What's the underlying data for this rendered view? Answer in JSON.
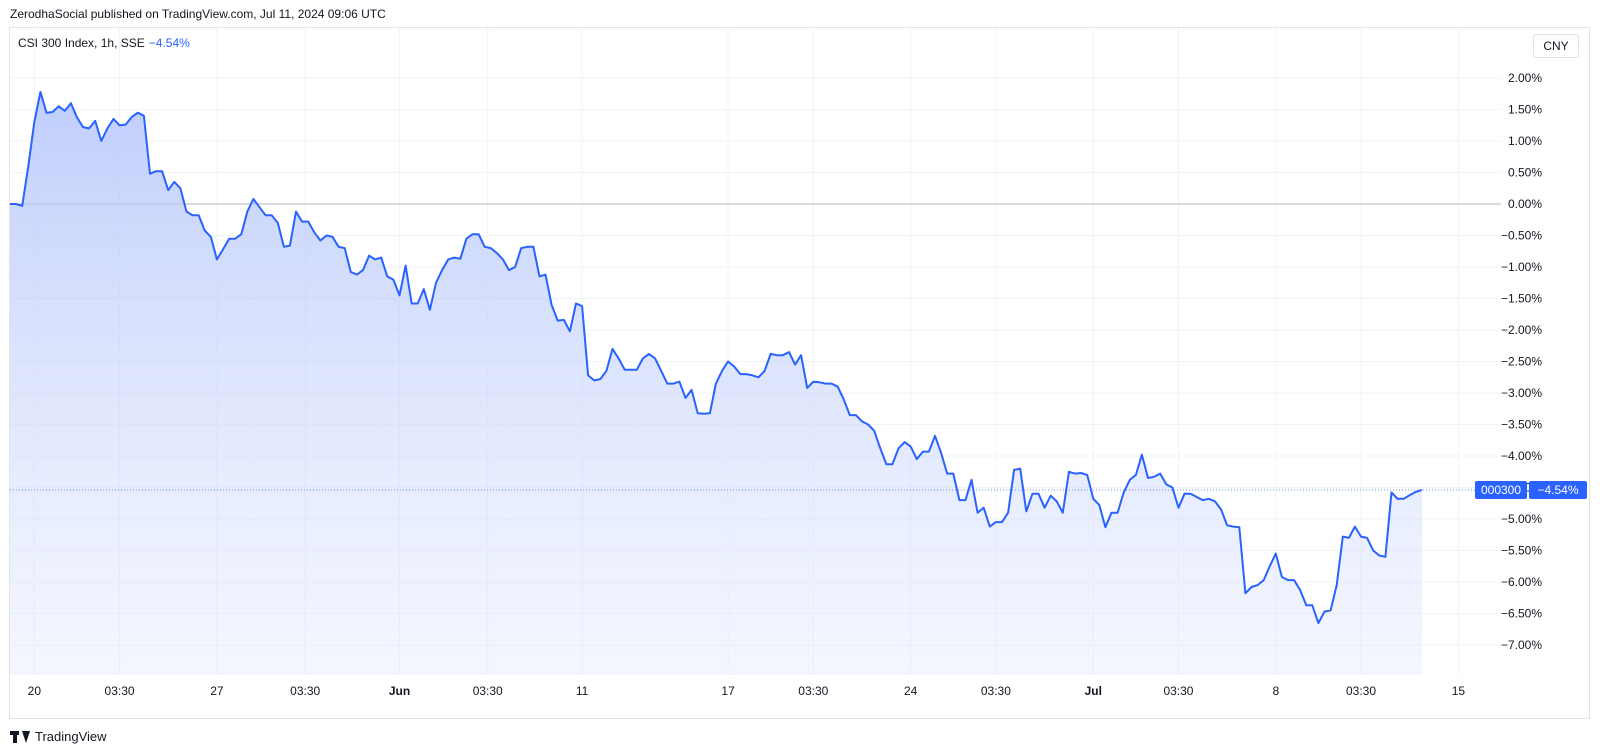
{
  "publisher_line": "ZerodhaSocial published on TradingView.com, Jul 11, 2024 09:06 UTC",
  "legend": {
    "title": "CSI 300 Index, 1h, SSE",
    "change": "−4.54%"
  },
  "currency_button": "CNY",
  "footer": {
    "brand": "TradingView",
    "logo_icon": "tradingview-logo-icon"
  },
  "colors": {
    "line": "#2962ff",
    "fill_top": "#b7c6fb",
    "zero_line": "#b2b5be",
    "grid": "#f0f3fa",
    "badge": "#2962ff"
  },
  "price_badges": {
    "symbol": "000300",
    "value": "−4.54%"
  },
  "chart_data": {
    "type": "area",
    "title": "CSI 300 Index, 1h, SSE",
    "y_unit": "%",
    "ylim": [
      -7.4,
      2.3
    ],
    "y_ticks": [
      "2.00%",
      "1.50%",
      "1.00%",
      "0.50%",
      "0.00%",
      "−0.50%",
      "−1.00%",
      "−1.50%",
      "−2.00%",
      "−2.50%",
      "−3.00%",
      "−3.50%",
      "−4.00%",
      "−4.50%",
      "−5.00%",
      "−5.50%",
      "−6.00%",
      "−6.50%",
      "−7.00%"
    ],
    "y_tick_values": [
      2.0,
      1.5,
      1.0,
      0.5,
      0.0,
      -0.5,
      -1.0,
      -1.5,
      -2.0,
      -2.5,
      -3.0,
      -3.5,
      -4.0,
      -4.5,
      -5.0,
      -5.5,
      -6.0,
      -6.5,
      -7.0
    ],
    "x_ticks": [
      {
        "label": "20",
        "bold": false,
        "x": 4
      },
      {
        "label": "03:30",
        "bold": false,
        "x": 18
      },
      {
        "label": "27",
        "bold": false,
        "x": 34
      },
      {
        "label": "03:30",
        "bold": false,
        "x": 48.5
      },
      {
        "label": "Jun",
        "bold": true,
        "x": 64
      },
      {
        "label": "03:30",
        "bold": false,
        "x": 78.5
      },
      {
        "label": "11",
        "bold": false,
        "x": 94
      },
      {
        "label": "17",
        "bold": false,
        "x": 118
      },
      {
        "label": "03:30",
        "bold": false,
        "x": 132
      },
      {
        "label": "24",
        "bold": false,
        "x": 148
      },
      {
        "label": "03:30",
        "bold": false,
        "x": 162
      },
      {
        "label": "Jul",
        "bold": true,
        "x": 178
      },
      {
        "label": "03:30",
        "bold": false,
        "x": 192
      },
      {
        "label": "8",
        "bold": false,
        "x": 208
      },
      {
        "label": "03:30",
        "bold": false,
        "x": 222
      },
      {
        "label": "15",
        "bold": false,
        "x": 238
      }
    ],
    "x_range": [
      0,
      245
    ],
    "last_value": -4.54,
    "series": [
      {
        "values": [
          [
            0,
            0.0
          ],
          [
            1,
            0.0
          ],
          [
            2,
            -0.03
          ],
          [
            3,
            0.6
          ],
          [
            4,
            1.3
          ],
          [
            5,
            1.78
          ],
          [
            6,
            1.45
          ],
          [
            7,
            1.46
          ],
          [
            8,
            1.55
          ],
          [
            9,
            1.48
          ],
          [
            10,
            1.6
          ],
          [
            11,
            1.38
          ],
          [
            12,
            1.22
          ],
          [
            13,
            1.2
          ],
          [
            14,
            1.32
          ],
          [
            15,
            1.0
          ],
          [
            16,
            1.2
          ],
          [
            17,
            1.35
          ],
          [
            18,
            1.25
          ],
          [
            19,
            1.26
          ],
          [
            20,
            1.38
          ],
          [
            21,
            1.45
          ],
          [
            22,
            1.4
          ],
          [
            23,
            0.48
          ],
          [
            24,
            0.52
          ],
          [
            25,
            0.52
          ],
          [
            26,
            0.22
          ],
          [
            27,
            0.35
          ],
          [
            28,
            0.25
          ],
          [
            29,
            -0.12
          ],
          [
            30,
            -0.18
          ],
          [
            31,
            -0.18
          ],
          [
            32,
            -0.42
          ],
          [
            33,
            -0.52
          ],
          [
            34,
            -0.88
          ],
          [
            35,
            -0.72
          ],
          [
            36,
            -0.55
          ],
          [
            37,
            -0.55
          ],
          [
            38,
            -0.48
          ],
          [
            39,
            -0.12
          ],
          [
            40,
            0.08
          ],
          [
            41,
            -0.05
          ],
          [
            42,
            -0.18
          ],
          [
            43,
            -0.18
          ],
          [
            44,
            -0.3
          ],
          [
            45,
            -0.68
          ],
          [
            46,
            -0.66
          ],
          [
            47,
            -0.12
          ],
          [
            48,
            -0.28
          ],
          [
            49,
            -0.28
          ],
          [
            50,
            -0.45
          ],
          [
            51,
            -0.58
          ],
          [
            52,
            -0.5
          ],
          [
            53,
            -0.52
          ],
          [
            54,
            -0.68
          ],
          [
            55,
            -0.7
          ],
          [
            56,
            -1.08
          ],
          [
            57,
            -1.12
          ],
          [
            58,
            -1.05
          ],
          [
            59,
            -0.82
          ],
          [
            60,
            -0.88
          ],
          [
            61,
            -0.85
          ],
          [
            62,
            -1.15
          ],
          [
            63,
            -1.2
          ],
          [
            64,
            -1.45
          ],
          [
            65,
            -0.98
          ],
          [
            66,
            -1.58
          ],
          [
            67,
            -1.58
          ],
          [
            68,
            -1.35
          ],
          [
            69,
            -1.68
          ],
          [
            70,
            -1.25
          ],
          [
            71,
            -1.05
          ],
          [
            72,
            -0.88
          ],
          [
            73,
            -0.85
          ],
          [
            74,
            -0.87
          ],
          [
            75,
            -0.55
          ],
          [
            76,
            -0.48
          ],
          [
            77,
            -0.48
          ],
          [
            78,
            -0.68
          ],
          [
            79,
            -0.7
          ],
          [
            80,
            -0.78
          ],
          [
            81,
            -0.88
          ],
          [
            82,
            -1.05
          ],
          [
            83,
            -1.0
          ],
          [
            84,
            -0.7
          ],
          [
            85,
            -0.68
          ],
          [
            86,
            -0.68
          ],
          [
            87,
            -1.15
          ],
          [
            88,
            -1.12
          ],
          [
            89,
            -1.6
          ],
          [
            90,
            -1.85
          ],
          [
            91,
            -1.84
          ],
          [
            92,
            -2.02
          ],
          [
            93,
            -1.58
          ],
          [
            94,
            -1.62
          ],
          [
            95,
            -2.72
          ],
          [
            96,
            -2.8
          ],
          [
            97,
            -2.78
          ],
          [
            98,
            -2.65
          ],
          [
            99,
            -2.3
          ],
          [
            100,
            -2.45
          ],
          [
            101,
            -2.63
          ],
          [
            102,
            -2.63
          ],
          [
            103,
            -2.63
          ],
          [
            104,
            -2.45
          ],
          [
            105,
            -2.38
          ],
          [
            106,
            -2.45
          ],
          [
            107,
            -2.65
          ],
          [
            108,
            -2.85
          ],
          [
            109,
            -2.85
          ],
          [
            110,
            -2.82
          ],
          [
            111,
            -3.08
          ],
          [
            112,
            -2.95
          ],
          [
            113,
            -3.32
          ],
          [
            114,
            -3.33
          ],
          [
            115,
            -3.32
          ],
          [
            116,
            -2.85
          ],
          [
            117,
            -2.65
          ],
          [
            118,
            -2.5
          ],
          [
            119,
            -2.58
          ],
          [
            120,
            -2.7
          ],
          [
            121,
            -2.7
          ],
          [
            122,
            -2.72
          ],
          [
            123,
            -2.75
          ],
          [
            124,
            -2.65
          ],
          [
            125,
            -2.38
          ],
          [
            126,
            -2.4
          ],
          [
            127,
            -2.4
          ],
          [
            128,
            -2.35
          ],
          [
            129,
            -2.55
          ],
          [
            130,
            -2.4
          ],
          [
            131,
            -2.92
          ],
          [
            132,
            -2.82
          ],
          [
            133,
            -2.83
          ],
          [
            134,
            -2.85
          ],
          [
            135,
            -2.85
          ],
          [
            136,
            -2.9
          ],
          [
            137,
            -3.1
          ],
          [
            138,
            -3.35
          ],
          [
            139,
            -3.35
          ],
          [
            140,
            -3.45
          ],
          [
            141,
            -3.5
          ],
          [
            142,
            -3.6
          ],
          [
            143,
            -3.88
          ],
          [
            144,
            -4.13
          ],
          [
            145,
            -4.13
          ],
          [
            146,
            -3.88
          ],
          [
            147,
            -3.78
          ],
          [
            148,
            -3.85
          ],
          [
            149,
            -4.05
          ],
          [
            150,
            -3.93
          ],
          [
            151,
            -3.93
          ],
          [
            152,
            -3.68
          ],
          [
            153,
            -3.95
          ],
          [
            154,
            -4.28
          ],
          [
            155,
            -4.28
          ],
          [
            156,
            -4.7
          ],
          [
            157,
            -4.7
          ],
          [
            158,
            -4.38
          ],
          [
            159,
            -4.9
          ],
          [
            160,
            -4.82
          ],
          [
            161,
            -5.12
          ],
          [
            162,
            -5.05
          ],
          [
            163,
            -5.05
          ],
          [
            164,
            -4.9
          ],
          [
            165,
            -4.22
          ],
          [
            166,
            -4.2
          ],
          [
            167,
            -4.88
          ],
          [
            168,
            -4.6
          ],
          [
            169,
            -4.6
          ],
          [
            170,
            -4.82
          ],
          [
            171,
            -4.63
          ],
          [
            172,
            -4.72
          ],
          [
            173,
            -4.9
          ],
          [
            174,
            -4.25
          ],
          [
            175,
            -4.28
          ],
          [
            176,
            -4.27
          ],
          [
            177,
            -4.3
          ],
          [
            178,
            -4.68
          ],
          [
            179,
            -4.78
          ],
          [
            180,
            -5.13
          ],
          [
            181,
            -4.9
          ],
          [
            182,
            -4.9
          ],
          [
            183,
            -4.58
          ],
          [
            184,
            -4.38
          ],
          [
            185,
            -4.3
          ],
          [
            186,
            -3.98
          ],
          [
            187,
            -4.35
          ],
          [
            188,
            -4.33
          ],
          [
            189,
            -4.28
          ],
          [
            190,
            -4.45
          ],
          [
            191,
            -4.5
          ],
          [
            192,
            -4.82
          ],
          [
            193,
            -4.6
          ],
          [
            194,
            -4.6
          ],
          [
            195,
            -4.65
          ],
          [
            196,
            -4.7
          ],
          [
            197,
            -4.68
          ],
          [
            198,
            -4.72
          ],
          [
            199,
            -4.85
          ],
          [
            200,
            -5.1
          ],
          [
            201,
            -5.12
          ],
          [
            202,
            -5.13
          ],
          [
            203,
            -6.18
          ],
          [
            204,
            -6.08
          ],
          [
            205,
            -6.05
          ],
          [
            206,
            -5.97
          ],
          [
            207,
            -5.75
          ],
          [
            208,
            -5.55
          ],
          [
            209,
            -5.92
          ],
          [
            210,
            -5.97
          ],
          [
            211,
            -5.97
          ],
          [
            212,
            -6.13
          ],
          [
            213,
            -6.37
          ],
          [
            214,
            -6.37
          ],
          [
            215,
            -6.65
          ],
          [
            216,
            -6.47
          ],
          [
            217,
            -6.45
          ],
          [
            218,
            -6.05
          ],
          [
            219,
            -5.28
          ],
          [
            220,
            -5.3
          ],
          [
            221,
            -5.12
          ],
          [
            222,
            -5.28
          ],
          [
            223,
            -5.3
          ],
          [
            224,
            -5.5
          ],
          [
            225,
            -5.58
          ],
          [
            226,
            -5.6
          ],
          [
            227,
            -4.58
          ],
          [
            228,
            -4.68
          ],
          [
            229,
            -4.68
          ],
          [
            230,
            -4.62
          ],
          [
            231,
            -4.57
          ],
          [
            232,
            -4.54
          ]
        ]
      }
    ]
  }
}
